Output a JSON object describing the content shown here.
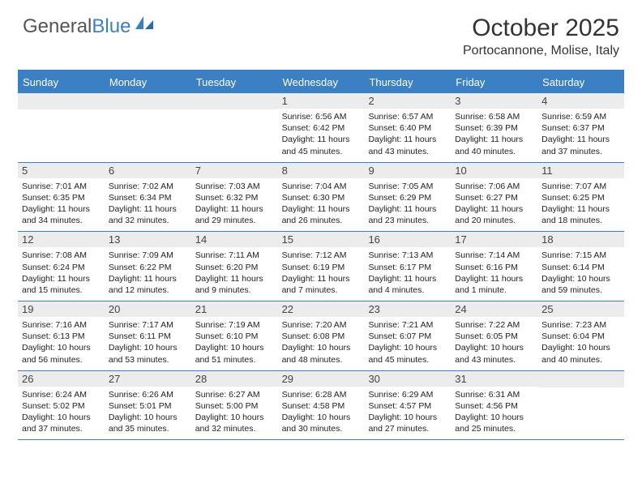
{
  "logo": {
    "text1": "General",
    "text2": "Blue"
  },
  "title": "October 2025",
  "location": "Portocannone, Molise, Italy",
  "colors": {
    "brand_blue": "#3b7fc4",
    "day_header_bg": "#ececec",
    "text": "#333333"
  },
  "day_labels": [
    "Sunday",
    "Monday",
    "Tuesday",
    "Wednesday",
    "Thursday",
    "Friday",
    "Saturday"
  ],
  "weeks": [
    [
      null,
      null,
      null,
      {
        "n": "1",
        "sr": "Sunrise: 6:56 AM",
        "ss": "Sunset: 6:42 PM",
        "dl": "Daylight: 11 hours and 45 minutes."
      },
      {
        "n": "2",
        "sr": "Sunrise: 6:57 AM",
        "ss": "Sunset: 6:40 PM",
        "dl": "Daylight: 11 hours and 43 minutes."
      },
      {
        "n": "3",
        "sr": "Sunrise: 6:58 AM",
        "ss": "Sunset: 6:39 PM",
        "dl": "Daylight: 11 hours and 40 minutes."
      },
      {
        "n": "4",
        "sr": "Sunrise: 6:59 AM",
        "ss": "Sunset: 6:37 PM",
        "dl": "Daylight: 11 hours and 37 minutes."
      }
    ],
    [
      {
        "n": "5",
        "sr": "Sunrise: 7:01 AM",
        "ss": "Sunset: 6:35 PM",
        "dl": "Daylight: 11 hours and 34 minutes."
      },
      {
        "n": "6",
        "sr": "Sunrise: 7:02 AM",
        "ss": "Sunset: 6:34 PM",
        "dl": "Daylight: 11 hours and 32 minutes."
      },
      {
        "n": "7",
        "sr": "Sunrise: 7:03 AM",
        "ss": "Sunset: 6:32 PM",
        "dl": "Daylight: 11 hours and 29 minutes."
      },
      {
        "n": "8",
        "sr": "Sunrise: 7:04 AM",
        "ss": "Sunset: 6:30 PM",
        "dl": "Daylight: 11 hours and 26 minutes."
      },
      {
        "n": "9",
        "sr": "Sunrise: 7:05 AM",
        "ss": "Sunset: 6:29 PM",
        "dl": "Daylight: 11 hours and 23 minutes."
      },
      {
        "n": "10",
        "sr": "Sunrise: 7:06 AM",
        "ss": "Sunset: 6:27 PM",
        "dl": "Daylight: 11 hours and 20 minutes."
      },
      {
        "n": "11",
        "sr": "Sunrise: 7:07 AM",
        "ss": "Sunset: 6:25 PM",
        "dl": "Daylight: 11 hours and 18 minutes."
      }
    ],
    [
      {
        "n": "12",
        "sr": "Sunrise: 7:08 AM",
        "ss": "Sunset: 6:24 PM",
        "dl": "Daylight: 11 hours and 15 minutes."
      },
      {
        "n": "13",
        "sr": "Sunrise: 7:09 AM",
        "ss": "Sunset: 6:22 PM",
        "dl": "Daylight: 11 hours and 12 minutes."
      },
      {
        "n": "14",
        "sr": "Sunrise: 7:11 AM",
        "ss": "Sunset: 6:20 PM",
        "dl": "Daylight: 11 hours and 9 minutes."
      },
      {
        "n": "15",
        "sr": "Sunrise: 7:12 AM",
        "ss": "Sunset: 6:19 PM",
        "dl": "Daylight: 11 hours and 7 minutes."
      },
      {
        "n": "16",
        "sr": "Sunrise: 7:13 AM",
        "ss": "Sunset: 6:17 PM",
        "dl": "Daylight: 11 hours and 4 minutes."
      },
      {
        "n": "17",
        "sr": "Sunrise: 7:14 AM",
        "ss": "Sunset: 6:16 PM",
        "dl": "Daylight: 11 hours and 1 minute."
      },
      {
        "n": "18",
        "sr": "Sunrise: 7:15 AM",
        "ss": "Sunset: 6:14 PM",
        "dl": "Daylight: 10 hours and 59 minutes."
      }
    ],
    [
      {
        "n": "19",
        "sr": "Sunrise: 7:16 AM",
        "ss": "Sunset: 6:13 PM",
        "dl": "Daylight: 10 hours and 56 minutes."
      },
      {
        "n": "20",
        "sr": "Sunrise: 7:17 AM",
        "ss": "Sunset: 6:11 PM",
        "dl": "Daylight: 10 hours and 53 minutes."
      },
      {
        "n": "21",
        "sr": "Sunrise: 7:19 AM",
        "ss": "Sunset: 6:10 PM",
        "dl": "Daylight: 10 hours and 51 minutes."
      },
      {
        "n": "22",
        "sr": "Sunrise: 7:20 AM",
        "ss": "Sunset: 6:08 PM",
        "dl": "Daylight: 10 hours and 48 minutes."
      },
      {
        "n": "23",
        "sr": "Sunrise: 7:21 AM",
        "ss": "Sunset: 6:07 PM",
        "dl": "Daylight: 10 hours and 45 minutes."
      },
      {
        "n": "24",
        "sr": "Sunrise: 7:22 AM",
        "ss": "Sunset: 6:05 PM",
        "dl": "Daylight: 10 hours and 43 minutes."
      },
      {
        "n": "25",
        "sr": "Sunrise: 7:23 AM",
        "ss": "Sunset: 6:04 PM",
        "dl": "Daylight: 10 hours and 40 minutes."
      }
    ],
    [
      {
        "n": "26",
        "sr": "Sunrise: 6:24 AM",
        "ss": "Sunset: 5:02 PM",
        "dl": "Daylight: 10 hours and 37 minutes."
      },
      {
        "n": "27",
        "sr": "Sunrise: 6:26 AM",
        "ss": "Sunset: 5:01 PM",
        "dl": "Daylight: 10 hours and 35 minutes."
      },
      {
        "n": "28",
        "sr": "Sunrise: 6:27 AM",
        "ss": "Sunset: 5:00 PM",
        "dl": "Daylight: 10 hours and 32 minutes."
      },
      {
        "n": "29",
        "sr": "Sunrise: 6:28 AM",
        "ss": "Sunset: 4:58 PM",
        "dl": "Daylight: 10 hours and 30 minutes."
      },
      {
        "n": "30",
        "sr": "Sunrise: 6:29 AM",
        "ss": "Sunset: 4:57 PM",
        "dl": "Daylight: 10 hours and 27 minutes."
      },
      {
        "n": "31",
        "sr": "Sunrise: 6:31 AM",
        "ss": "Sunset: 4:56 PM",
        "dl": "Daylight: 10 hours and 25 minutes."
      },
      null
    ]
  ]
}
